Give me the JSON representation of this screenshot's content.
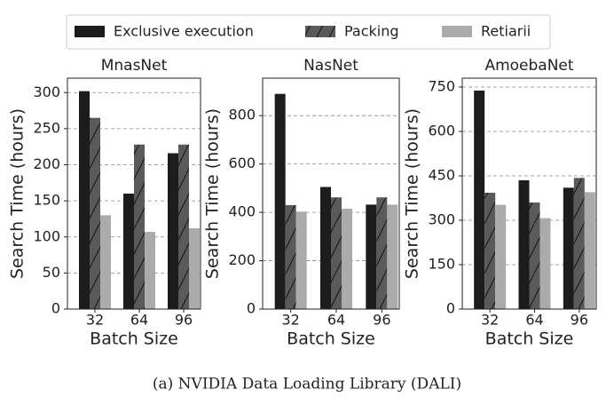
{
  "chart_data": [
    {
      "type": "bar",
      "title": "MnasNet",
      "xlabel": "Batch Size",
      "ylabel": "Search Time (hours)",
      "categories": [
        "32",
        "64",
        "96"
      ],
      "series": [
        {
          "name": "Exclusive execution",
          "color": "#1c1c1c",
          "values": [
            302,
            160,
            216
          ]
        },
        {
          "name": "Packing",
          "color": "#5a5a5a",
          "hatch": "/",
          "values": [
            265,
            228,
            228
          ]
        },
        {
          "name": "Retiarii",
          "color": "#ababab",
          "values": [
            130,
            107,
            112
          ]
        }
      ],
      "ylim": [
        0,
        320
      ],
      "yticks": [
        0,
        50,
        100,
        150,
        200,
        250,
        300
      ],
      "grid": true
    },
    {
      "type": "bar",
      "title": "NasNet",
      "xlabel": "Batch Size",
      "ylabel": "Search Time (hours)",
      "categories": [
        "32",
        "64",
        "96"
      ],
      "series": [
        {
          "name": "Exclusive execution",
          "color": "#1c1c1c",
          "values": [
            890,
            505,
            432
          ]
        },
        {
          "name": "Packing",
          "color": "#5a5a5a",
          "hatch": "/",
          "values": [
            430,
            462,
            462
          ]
        },
        {
          "name": "Retiarii",
          "color": "#ababab",
          "values": [
            403,
            415,
            432
          ]
        }
      ],
      "ylim": [
        0,
        955
      ],
      "yticks": [
        0,
        200,
        400,
        600,
        800
      ],
      "grid": true
    },
    {
      "type": "bar",
      "title": "AmoebaNet",
      "xlabel": "Batch Size",
      "ylabel": "Search Time (hours)",
      "categories": [
        "32",
        "64",
        "96"
      ],
      "series": [
        {
          "name": "Exclusive execution",
          "color": "#1c1c1c",
          "values": [
            738,
            435,
            410
          ]
        },
        {
          "name": "Packing",
          "color": "#5a5a5a",
          "hatch": "/",
          "values": [
            393,
            360,
            443
          ]
        },
        {
          "name": "Retiarii",
          "color": "#ababab",
          "values": [
            352,
            307,
            395
          ]
        }
      ],
      "ylim": [
        0,
        780
      ],
      "yticks": [
        0,
        150,
        300,
        450,
        600,
        750
      ],
      "grid": true
    }
  ],
  "caption": "(a)  NVIDIA Data Loading Library (DALI)"
}
